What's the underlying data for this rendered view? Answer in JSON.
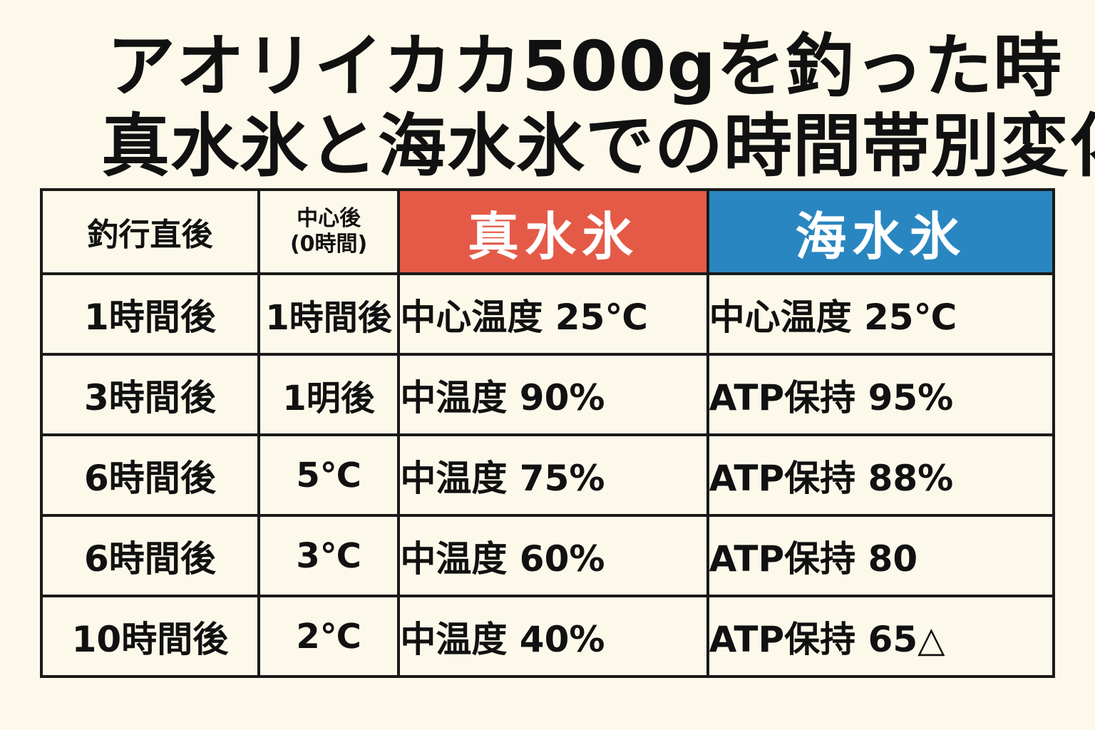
{
  "title": {
    "line1": "アオリイカカ500gを釣った時",
    "line2": "真水氷と海水氷での時間帯別変化"
  },
  "table": {
    "header": {
      "col1": "釣行直後",
      "col2_line1": "中心後",
      "col2_line2": "(0時間)",
      "col3": "真水氷",
      "col4": "海水氷"
    },
    "rows": [
      {
        "c1": "1時間後",
        "c2": "1時間後",
        "c3": "中心温度 25℃",
        "c4": "中心温度 25℃"
      },
      {
        "c1": "3時間後",
        "c2": "1明後",
        "c3": "中温度 90%",
        "c4": "ATP保持 95%"
      },
      {
        "c1": "6時間後",
        "c2": "5℃",
        "c3": "中温度 75%",
        "c4": "ATP保持 88%"
      },
      {
        "c1": "6時間後",
        "c2": "3℃",
        "c3": "中温度 60%",
        "c4": "ATP保持 80"
      },
      {
        "c1": "10時間後",
        "c2": "2℃",
        "c3": "中温度 40%",
        "c4": "ATP保持 65△"
      }
    ]
  },
  "colors": {
    "fresh_ice_header": "#e45a47",
    "sea_ice_header": "#2a86c0",
    "background": "#fdf9ea"
  }
}
